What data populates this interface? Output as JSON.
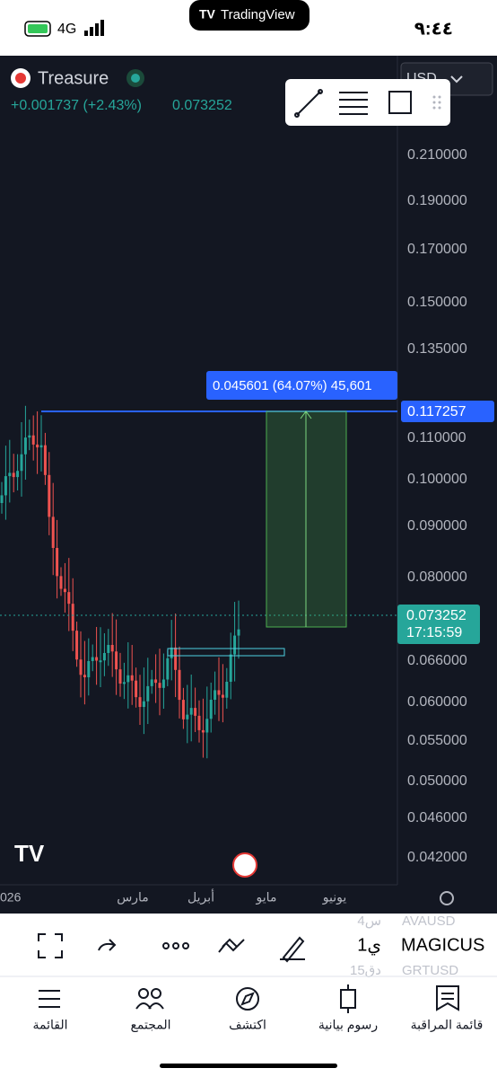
{
  "status_bar": {
    "time": "٩:٤٤",
    "network": "4G"
  },
  "app_title": "TradingView",
  "symbol": {
    "name": "Treasure",
    "change": "+0.001737 (+2.43%)",
    "price": "0.073252"
  },
  "currency": "USD",
  "price_axis": [
    "0.210000",
    "0.190000",
    "0.170000",
    "0.150000",
    "0.135000",
    "0.110000",
    "0.100000",
    "0.090000",
    "0.080000",
    "0.066000",
    "0.060000",
    "0.055000",
    "0.050000",
    "0.046000",
    "0.042000"
  ],
  "line_label": "0.117257",
  "current_price": {
    "price": "0.073252",
    "countdown": "17:15:59"
  },
  "measure_label": "0.045601 (64.07%) 45,601",
  "time_axis": [
    "026",
    "مارس",
    "أبريل",
    "مايو",
    "يونيو"
  ],
  "toolbar": {
    "interval": "1ي",
    "symbol": "MAGICUS",
    "watch_items": [
      {
        "symbol": "AVAUSD",
        "interval": "4س"
      },
      {
        "symbol": "GRTUSD",
        "interval": "15دق"
      }
    ]
  },
  "tabs": [
    "القائمة",
    "المجتمع",
    "اكتشف",
    "رسوم بيانية",
    "قائمة المراقبة"
  ]
}
